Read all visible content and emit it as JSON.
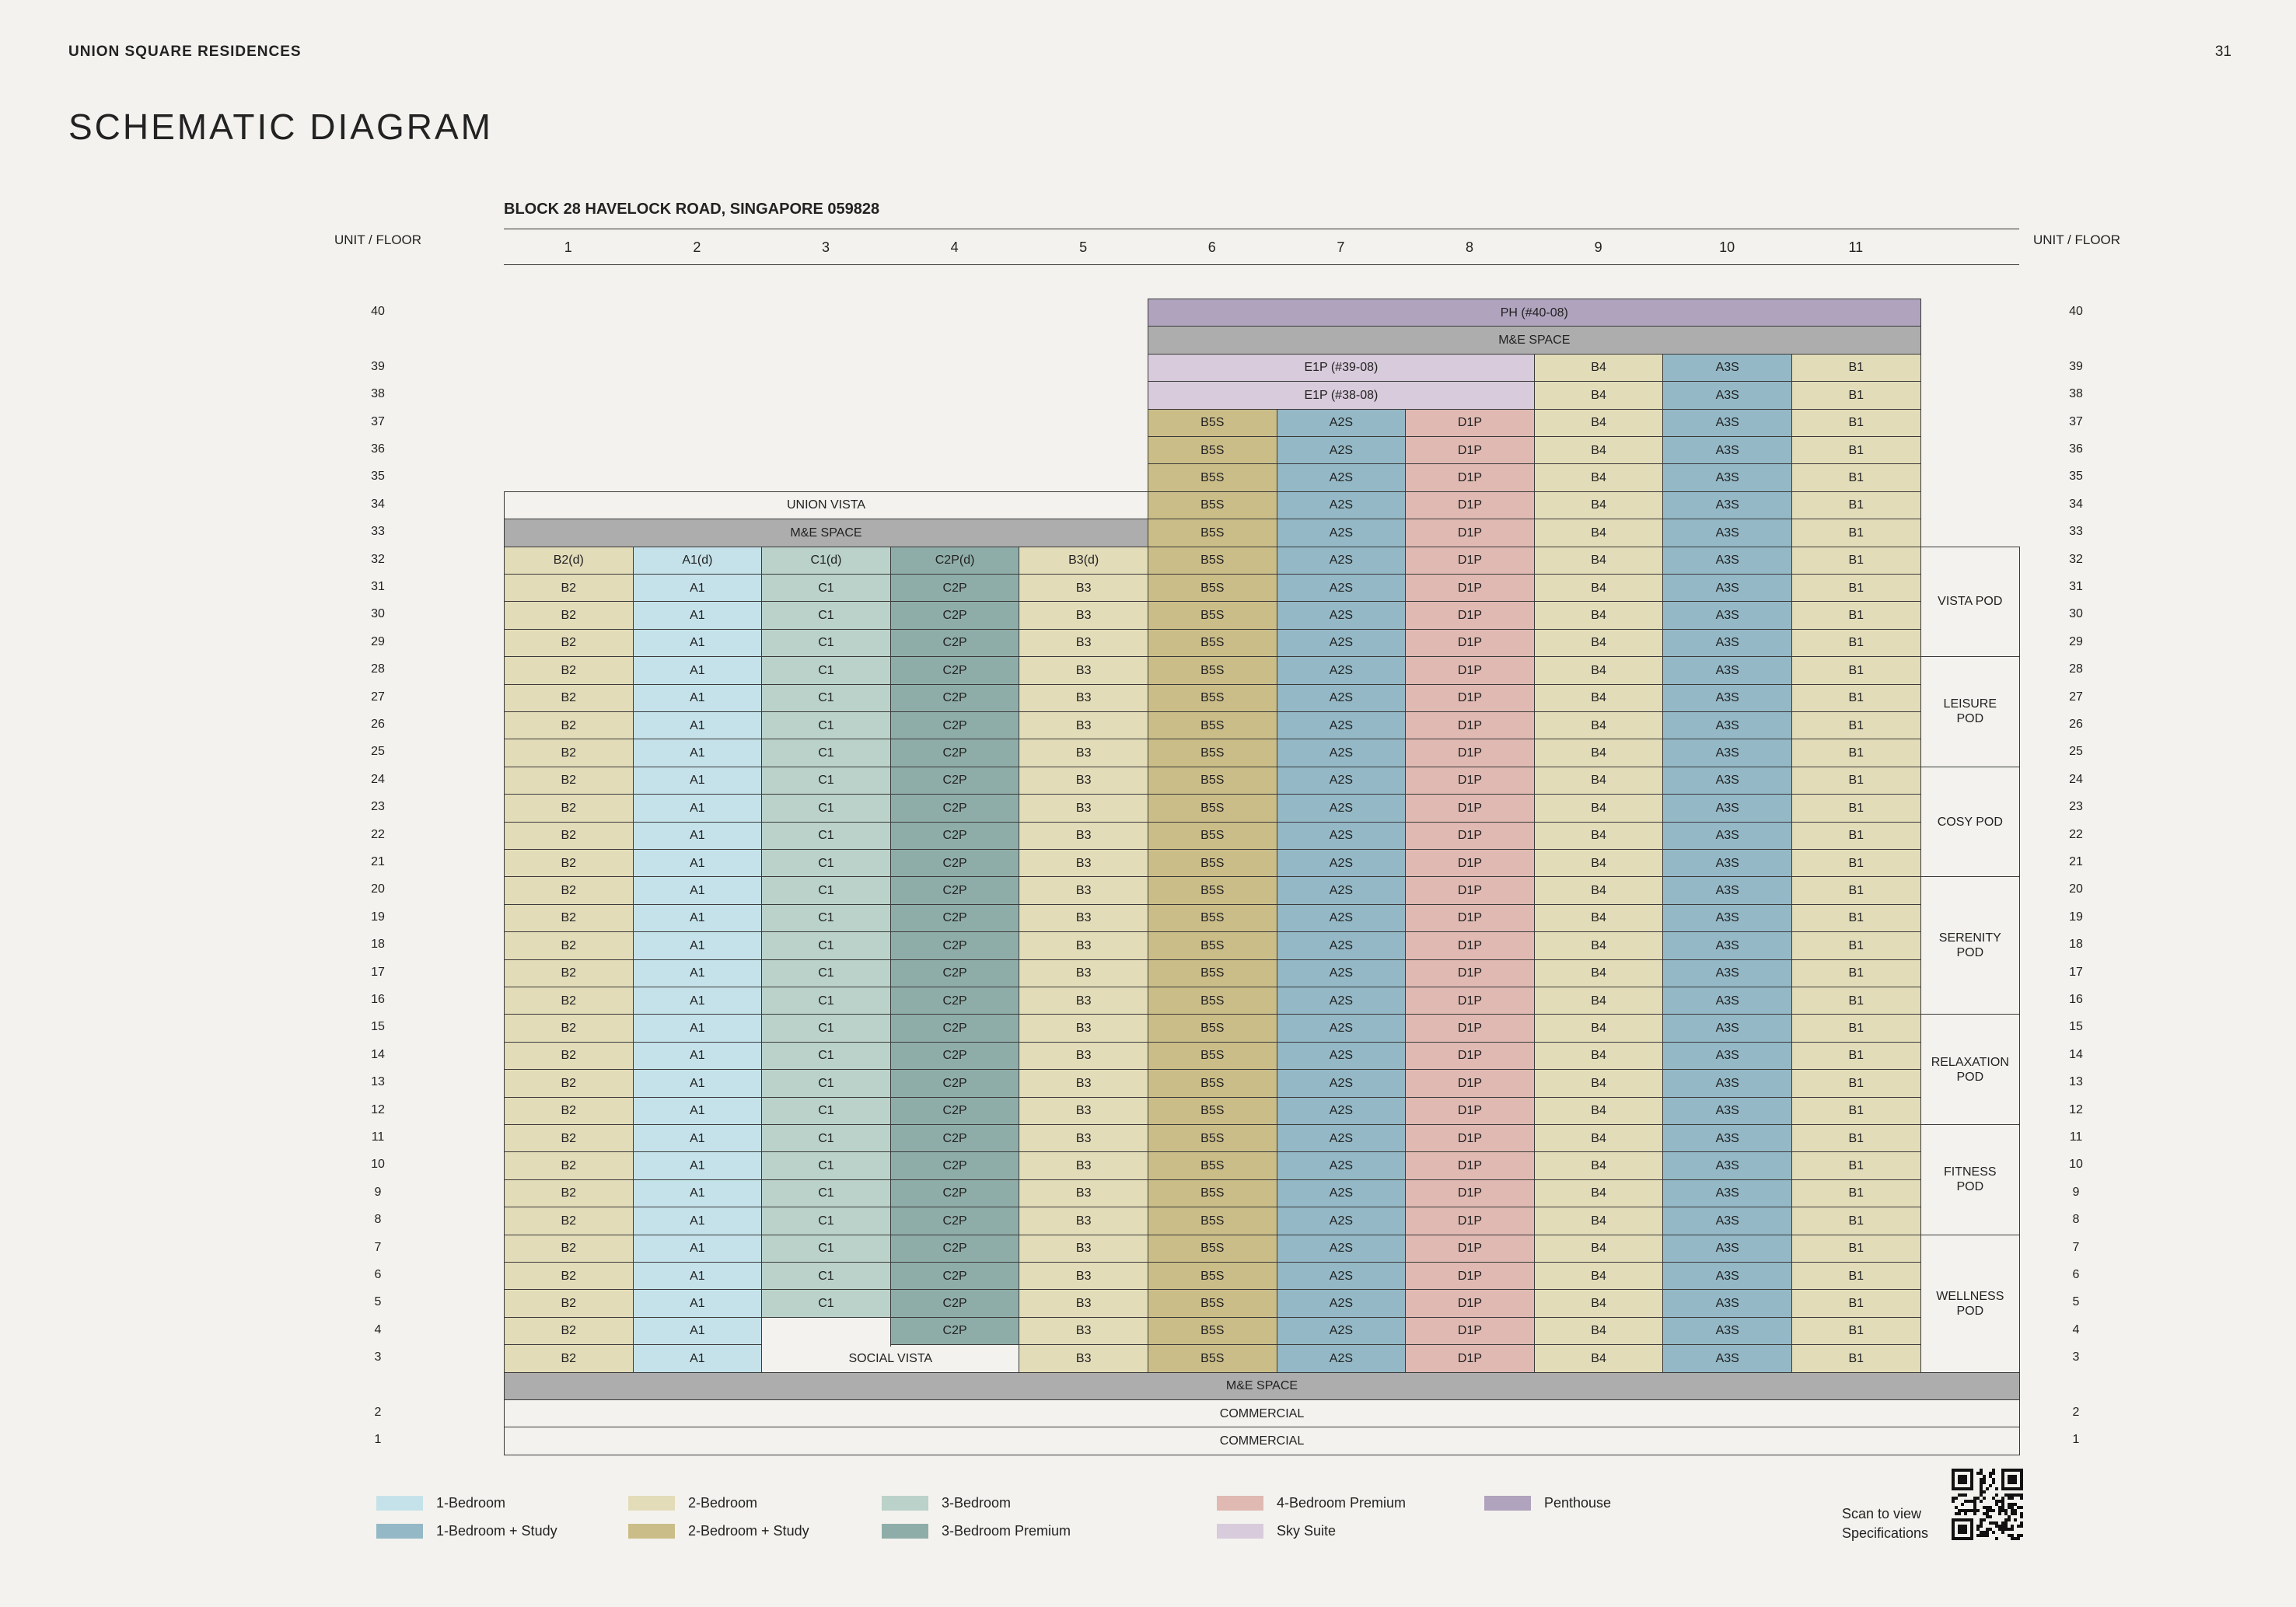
{
  "header": {
    "document_title": "UNION SQUARE RESIDENCES",
    "page_number": "31",
    "page_title": "SCHEMATIC DIAGRAM"
  },
  "block_title": "BLOCK 28 HAVELOCK ROAD, SINGAPORE 059828",
  "axis_label": "UNIT / FLOOR",
  "units": [
    "1",
    "2",
    "3",
    "4",
    "5",
    "6",
    "7",
    "8",
    "9",
    "10",
    "11"
  ],
  "rows": [
    "40",
    "ME1",
    "39",
    "38",
    "37",
    "36",
    "35",
    "34",
    "33",
    "32",
    "31",
    "30",
    "29",
    "28",
    "27",
    "26",
    "25",
    "24",
    "23",
    "22",
    "21",
    "20",
    "19",
    "18",
    "17",
    "16",
    "15",
    "14",
    "13",
    "12",
    "11",
    "10",
    "9",
    "8",
    "7",
    "6",
    "5",
    "4",
    "3",
    "ME2",
    "2",
    "1"
  ],
  "floor_labels": [
    "40",
    "39",
    "38",
    "37",
    "36",
    "35",
    "34",
    "33",
    "32",
    "31",
    "30",
    "29",
    "28",
    "27",
    "26",
    "25",
    "24",
    "23",
    "22",
    "21",
    "20",
    "19",
    "18",
    "17",
    "16",
    "15",
    "14",
    "13",
    "12",
    "11",
    "10",
    "9",
    "8",
    "7",
    "6",
    "5",
    "4",
    "3",
    "2",
    "1"
  ],
  "colors": {
    "1br": "#c5e2ea",
    "1brS": "#94b8c6",
    "2br": "#e3dcb9",
    "2brS": "#cbbd88",
    "3br": "#bad2c9",
    "3brP": "#8fada8",
    "4brP": "#dfb9b2",
    "sky": "#d8cbdb",
    "ph": "#b0a3bd",
    "me": "#adadad",
    "blank": "#f3f2ee"
  },
  "stacks": [
    {
      "unit": 1,
      "label": "B2",
      "type": "2br",
      "floors": [
        3,
        31
      ]
    },
    {
      "unit": 1,
      "label": "B2(d)",
      "type": "2br",
      "floors": [
        32,
        32
      ]
    },
    {
      "unit": 2,
      "label": "A1",
      "type": "1br",
      "floors": [
        3,
        31
      ]
    },
    {
      "unit": 2,
      "label": "A1(d)",
      "type": "1br",
      "floors": [
        32,
        32
      ]
    },
    {
      "unit": 3,
      "label": "C1",
      "type": "3br",
      "floors": [
        5,
        31
      ]
    },
    {
      "unit": 3,
      "label": "C1(d)",
      "type": "3br",
      "floors": [
        32,
        32
      ]
    },
    {
      "unit": 4,
      "label": "C2P",
      "type": "3brP",
      "floors": [
        4,
        31
      ]
    },
    {
      "unit": 4,
      "label": "C2P(d)",
      "type": "3brP",
      "floors": [
        32,
        32
      ]
    },
    {
      "unit": 5,
      "label": "B3",
      "type": "2br",
      "floors": [
        3,
        31
      ]
    },
    {
      "unit": 5,
      "label": "B3(d)",
      "type": "2br",
      "floors": [
        32,
        32
      ]
    },
    {
      "unit": 6,
      "label": "B5S",
      "type": "2brS",
      "floors": [
        3,
        37
      ]
    },
    {
      "unit": 7,
      "label": "A2S",
      "type": "1brS",
      "floors": [
        3,
        37
      ]
    },
    {
      "unit": 8,
      "label": "D1P",
      "type": "4brP",
      "floors": [
        3,
        37
      ]
    },
    {
      "unit": 9,
      "label": "B4",
      "type": "2br",
      "floors": [
        3,
        39
      ]
    },
    {
      "unit": 10,
      "label": "A3S",
      "type": "1brS",
      "floors": [
        3,
        39
      ]
    },
    {
      "unit": 11,
      "label": "B1",
      "type": "2br",
      "floors": [
        3,
        39
      ]
    }
  ],
  "spans": [
    {
      "label": "PH (#40-08)",
      "type": "ph",
      "units": [
        6,
        11
      ],
      "rows": [
        "40",
        "40"
      ]
    },
    {
      "label": "M&E SPACE",
      "type": "me",
      "units": [
        6,
        11
      ],
      "rows": [
        "ME1",
        "ME1"
      ]
    },
    {
      "label": "E1P (#39-08)",
      "type": "sky",
      "units": [
        6,
        8
      ],
      "rows": [
        "39",
        "39"
      ]
    },
    {
      "label": "E1P (#38-08)",
      "type": "sky",
      "units": [
        6,
        8
      ],
      "rows": [
        "38",
        "38"
      ]
    },
    {
      "label": "UNION VISTA",
      "type": "blank",
      "units": [
        1,
        5
      ],
      "rows": [
        "34",
        "34"
      ]
    },
    {
      "label": "M&E SPACE",
      "type": "me",
      "units": [
        1,
        5
      ],
      "rows": [
        "33",
        "33"
      ]
    },
    {
      "label": "",
      "type": "blank",
      "units": [
        3,
        3
      ],
      "rows": [
        "4",
        "4"
      ]
    },
    {
      "label": "SOCIAL VISTA",
      "type": "blank",
      "units": [
        3,
        4
      ],
      "rows": [
        "3",
        "3"
      ]
    },
    {
      "label": "VISTA POD",
      "type": "blank",
      "units": [
        12,
        12
      ],
      "rows": [
        "32",
        "29"
      ]
    },
    {
      "label": "LEISURE POD",
      "type": "blank",
      "units": [
        12,
        12
      ],
      "rows": [
        "28",
        "25"
      ]
    },
    {
      "label": "COSY POD",
      "type": "blank",
      "units": [
        12,
        12
      ],
      "rows": [
        "24",
        "21"
      ]
    },
    {
      "label": "SERENITY POD",
      "type": "blank",
      "units": [
        12,
        12
      ],
      "rows": [
        "20",
        "16"
      ]
    },
    {
      "label": "RELAXATION POD",
      "type": "blank",
      "units": [
        12,
        12
      ],
      "rows": [
        "15",
        "12"
      ]
    },
    {
      "label": "FITNESS POD",
      "type": "blank",
      "units": [
        12,
        12
      ],
      "rows": [
        "11",
        "8"
      ]
    },
    {
      "label": "WELLNESS POD",
      "type": "blank",
      "units": [
        12,
        12
      ],
      "rows": [
        "7",
        "3"
      ]
    },
    {
      "label": "M&E SPACE",
      "type": "me",
      "units": [
        1,
        12
      ],
      "rows": [
        "ME2",
        "ME2"
      ]
    },
    {
      "label": "COMMERCIAL",
      "type": "blank",
      "units": [
        1,
        12
      ],
      "rows": [
        "2",
        "2"
      ]
    },
    {
      "label": "COMMERCIAL",
      "type": "blank",
      "units": [
        1,
        12
      ],
      "rows": [
        "1",
        "1"
      ]
    }
  ],
  "legend": [
    {
      "label": "1-Bedroom",
      "type": "1br"
    },
    {
      "label": "1-Bedroom + Study",
      "type": "1brS"
    },
    {
      "label": "2-Bedroom",
      "type": "2br"
    },
    {
      "label": "2-Bedroom + Study",
      "type": "2brS"
    },
    {
      "label": "3-Bedroom",
      "type": "3br"
    },
    {
      "label": "3-Bedroom Premium",
      "type": "3brP"
    },
    {
      "label": "4-Bedroom Premium",
      "type": "4brP"
    },
    {
      "label": "Sky Suite",
      "type": "sky"
    },
    {
      "label": "Penthouse",
      "type": "ph"
    }
  ],
  "qr": {
    "caption_line1": "Scan to view",
    "caption_line2": "Specifications",
    "icon": "qr-code-icon"
  }
}
